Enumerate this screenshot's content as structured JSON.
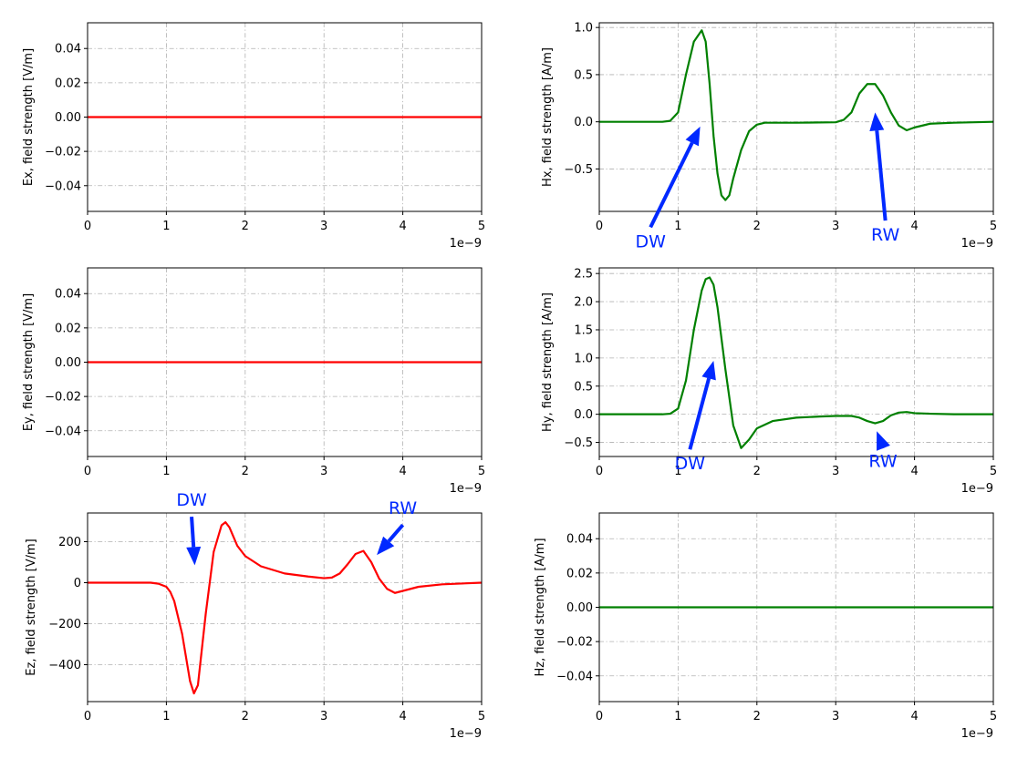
{
  "colors": {
    "e_series": "#ff0000",
    "h_series": "#008000",
    "annotation": "#0029ff",
    "grid": "#b0b0b0"
  },
  "chart_data": [
    {
      "id": "ex",
      "type": "line",
      "ylabel": "Ex, field strength [V/m]",
      "xlim": [
        0,
        5e-09
      ],
      "ylim": [
        -0.055,
        0.055
      ],
      "x_ticks": [
        0,
        1e-09,
        2e-09,
        3e-09,
        4e-09,
        5e-09
      ],
      "x_tick_labels": [
        "0",
        "1",
        "2",
        "3",
        "4",
        "5"
      ],
      "x_offset_label": "1e−9",
      "y_ticks": [
        -0.04,
        -0.02,
        0,
        0.02,
        0.04
      ],
      "y_tick_labels": [
        "−0.04",
        "−0.02",
        "0.00",
        "0.02",
        "0.04"
      ],
      "grid": true,
      "color_key": "e_series",
      "series": [
        {
          "x": [
            0,
            5e-09
          ],
          "y": [
            0,
            0
          ]
        }
      ],
      "annotations": []
    },
    {
      "id": "hx",
      "type": "line",
      "ylabel": "Hx, field strength [A/m]",
      "xlim": [
        0,
        5e-09
      ],
      "ylim": [
        -0.95,
        1.05
      ],
      "x_ticks": [
        0,
        1e-09,
        2e-09,
        3e-09,
        4e-09,
        5e-09
      ],
      "x_tick_labels": [
        "0",
        "1",
        "2",
        "3",
        "4",
        "5"
      ],
      "x_offset_label": "1e−9",
      "y_ticks": [
        -0.5,
        0,
        0.5,
        1.0
      ],
      "y_tick_labels": [
        "−0.5",
        "0.0",
        "0.5",
        "1.0"
      ],
      "grid": true,
      "color_key": "h_series",
      "series": [
        {
          "x": [
            0,
            8e-10,
            9e-10,
            1e-09,
            1.1e-09,
            1.2e-09,
            1.3e-09,
            1.35e-09,
            1.4e-09,
            1.45e-09,
            1.5e-09,
            1.55e-09,
            1.6e-09,
            1.65e-09,
            1.7e-09,
            1.8e-09,
            1.9e-09,
            2e-09,
            2.1e-09,
            2.2e-09,
            2.5e-09,
            3e-09,
            3.1e-09,
            3.2e-09,
            3.3e-09,
            3.4e-09,
            3.5e-09,
            3.6e-09,
            3.7e-09,
            3.8e-09,
            3.9e-09,
            4e-09,
            4.2e-09,
            4.5e-09,
            5e-09
          ],
          "y": [
            0,
            0,
            0.01,
            0.1,
            0.5,
            0.85,
            0.97,
            0.85,
            0.4,
            -0.15,
            -0.55,
            -0.78,
            -0.83,
            -0.78,
            -0.6,
            -0.3,
            -0.1,
            -0.03,
            -0.01,
            -0.01,
            -0.01,
            -0.005,
            0.02,
            0.1,
            0.3,
            0.4,
            0.4,
            0.28,
            0.1,
            -0.04,
            -0.09,
            -0.06,
            -0.02,
            -0.01,
            0
          ]
        }
      ],
      "annotations": [
        {
          "text": "DW",
          "xy": [
            1.28e-09,
            -0.05
          ],
          "xytext": [
            6.5e-10,
            -1.33
          ]
        },
        {
          "text": "RW",
          "xy": [
            3.5e-09,
            0.1
          ],
          "xytext": [
            3.63e-09,
            -1.26
          ]
        }
      ]
    },
    {
      "id": "ey",
      "type": "line",
      "ylabel": "Ey, field strength [V/m]",
      "xlim": [
        0,
        5e-09
      ],
      "ylim": [
        -0.055,
        0.055
      ],
      "x_ticks": [
        0,
        1e-09,
        2e-09,
        3e-09,
        4e-09,
        5e-09
      ],
      "x_tick_labels": [
        "0",
        "1",
        "2",
        "3",
        "4",
        "5"
      ],
      "x_offset_label": "1e−9",
      "y_ticks": [
        -0.04,
        -0.02,
        0,
        0.02,
        0.04
      ],
      "y_tick_labels": [
        "−0.04",
        "−0.02",
        "0.00",
        "0.02",
        "0.04"
      ],
      "grid": true,
      "color_key": "e_series",
      "series": [
        {
          "x": [
            0,
            5e-09
          ],
          "y": [
            0,
            0
          ]
        }
      ],
      "annotations": []
    },
    {
      "id": "hy",
      "type": "line",
      "ylabel": "Hy, field strength [A/m]",
      "xlim": [
        0,
        5e-09
      ],
      "ylim": [
        -0.75,
        2.6
      ],
      "x_ticks": [
        0,
        1e-09,
        2e-09,
        3e-09,
        4e-09,
        5e-09
      ],
      "x_tick_labels": [
        "0",
        "1",
        "2",
        "3",
        "4",
        "5"
      ],
      "x_offset_label": "1e−9",
      "y_ticks": [
        -0.5,
        0,
        0.5,
        1.0,
        1.5,
        2.0,
        2.5
      ],
      "y_tick_labels": [
        "−0.5",
        "0.0",
        "0.5",
        "1.0",
        "1.5",
        "2.0",
        "2.5"
      ],
      "grid": true,
      "color_key": "h_series",
      "series": [
        {
          "x": [
            0,
            8e-10,
            9e-10,
            1e-09,
            1.1e-09,
            1.2e-09,
            1.3e-09,
            1.35e-09,
            1.4e-09,
            1.45e-09,
            1.5e-09,
            1.6e-09,
            1.7e-09,
            1.8e-09,
            1.9e-09,
            2e-09,
            2.2e-09,
            2.5e-09,
            2.8e-09,
            3e-09,
            3.2e-09,
            3.3e-09,
            3.4e-09,
            3.5e-09,
            3.6e-09,
            3.7e-09,
            3.8e-09,
            3.9e-09,
            4e-09,
            4.2e-09,
            4.5e-09,
            5e-09
          ],
          "y": [
            0,
            0,
            0.01,
            0.1,
            0.6,
            1.5,
            2.2,
            2.4,
            2.43,
            2.3,
            1.9,
            0.8,
            -0.2,
            -0.6,
            -0.45,
            -0.25,
            -0.12,
            -0.06,
            -0.04,
            -0.03,
            -0.03,
            -0.06,
            -0.12,
            -0.16,
            -0.12,
            -0.02,
            0.03,
            0.04,
            0.02,
            0.01,
            0,
            0
          ]
        }
      ],
      "annotations": [
        {
          "text": "DW",
          "xy": [
            1.45e-09,
            0.95
          ],
          "xytext": [
            1.15e-09,
            -0.98
          ]
        },
        {
          "text": "RW",
          "xy": [
            3.52e-09,
            -0.3
          ],
          "xytext": [
            3.6e-09,
            -0.94
          ]
        }
      ]
    },
    {
      "id": "ez",
      "type": "line",
      "ylabel": "Ez, field strength [V/m]",
      "xlim": [
        0,
        5e-09
      ],
      "ylim": [
        -580,
        340
      ],
      "x_ticks": [
        0,
        1e-09,
        2e-09,
        3e-09,
        4e-09,
        5e-09
      ],
      "x_tick_labels": [
        "0",
        "1",
        "2",
        "3",
        "4",
        "5"
      ],
      "x_offset_label": "1e−9",
      "y_ticks": [
        -400,
        -200,
        0,
        200
      ],
      "y_tick_labels": [
        "−400",
        "−200",
        "0",
        "200"
      ],
      "grid": true,
      "color_key": "e_series",
      "series": [
        {
          "x": [
            0,
            8e-10,
            9e-10,
            1e-09,
            1.05e-09,
            1.1e-09,
            1.2e-09,
            1.3e-09,
            1.35e-09,
            1.4e-09,
            1.5e-09,
            1.6e-09,
            1.7e-09,
            1.75e-09,
            1.8e-09,
            1.9e-09,
            2e-09,
            2.2e-09,
            2.5e-09,
            2.8e-09,
            3e-09,
            3.1e-09,
            3.2e-09,
            3.3e-09,
            3.4e-09,
            3.5e-09,
            3.6e-09,
            3.7e-09,
            3.8e-09,
            3.9e-09,
            4e-09,
            4.2e-09,
            4.5e-09,
            5e-09
          ],
          "y": [
            0,
            0,
            -5,
            -20,
            -45,
            -90,
            -250,
            -480,
            -540,
            -500,
            -150,
            150,
            280,
            295,
            270,
            180,
            130,
            80,
            45,
            30,
            22,
            25,
            45,
            90,
            140,
            155,
            100,
            20,
            -30,
            -50,
            -40,
            -20,
            -8,
            0
          ]
        }
      ],
      "annotations": [
        {
          "text": "DW",
          "xy": [
            1.36e-09,
            85
          ],
          "xytext": [
            1.32e-09,
            375
          ]
        },
        {
          "text": "RW",
          "xy": [
            3.67e-09,
            135
          ],
          "xytext": [
            4e-09,
            335
          ]
        }
      ]
    },
    {
      "id": "hz",
      "type": "line",
      "ylabel": "Hz, field strength [A/m]",
      "xlim": [
        0,
        5e-09
      ],
      "ylim": [
        -0.055,
        0.055
      ],
      "x_ticks": [
        0,
        1e-09,
        2e-09,
        3e-09,
        4e-09,
        5e-09
      ],
      "x_tick_labels": [
        "0",
        "1",
        "2",
        "3",
        "4",
        "5"
      ],
      "x_offset_label": "1e−9",
      "y_ticks": [
        -0.04,
        -0.02,
        0,
        0.02,
        0.04
      ],
      "y_tick_labels": [
        "−0.04",
        "−0.02",
        "0.00",
        "0.02",
        "0.04"
      ],
      "grid": true,
      "color_key": "h_series",
      "series": [
        {
          "x": [
            0,
            5e-09
          ],
          "y": [
            0,
            0
          ]
        }
      ],
      "annotations": []
    }
  ]
}
